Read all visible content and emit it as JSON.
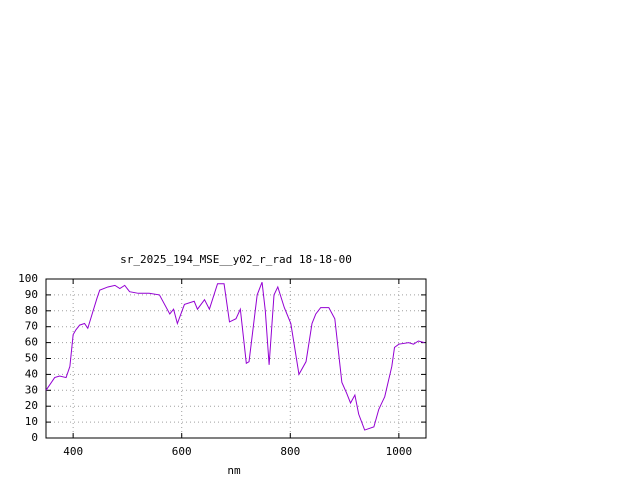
{
  "chart_data": {
    "type": "line",
    "title": "sr_2025_194_MSE__y02_r_rad 18-18-00",
    "x_label": "nm",
    "x": [
      350,
      366,
      375,
      387,
      394,
      400,
      405,
      412,
      421,
      427,
      435,
      444,
      449,
      464,
      477,
      486,
      495,
      504,
      520,
      540,
      559,
      578,
      585,
      592,
      605,
      623,
      629,
      642,
      651,
      666,
      678,
      688,
      700,
      708,
      719,
      724,
      739,
      748,
      754,
      761,
      770,
      777,
      789,
      801,
      816,
      829,
      840,
      847,
      856,
      871,
      882,
      895,
      904,
      911,
      919,
      926,
      937,
      954,
      963,
      974,
      987,
      992,
      1000,
      1018,
      1027,
      1036,
      1047
    ],
    "series": [
      {
        "name": "sr_2025_194_MSE__y02_r_rad",
        "color": "#9400d3",
        "values": [
          30,
          38,
          39,
          38,
          45,
          65,
          68,
          71,
          72,
          69,
          78,
          88,
          93,
          95,
          96,
          94,
          96,
          92,
          91,
          91,
          90,
          78,
          81,
          72,
          84,
          86,
          81,
          87,
          81,
          97,
          97,
          73,
          75,
          81,
          47,
          48,
          90,
          98,
          80,
          46,
          90,
          95,
          82,
          72,
          40,
          48,
          72,
          78,
          82,
          82,
          75,
          35,
          28,
          22,
          27,
          15,
          5,
          7,
          18,
          26,
          45,
          57,
          59,
          60,
          59,
          61,
          60
        ]
      }
    ],
    "xlim": [
      350,
      1050
    ],
    "xticks": [
      400,
      600,
      800,
      1000
    ],
    "ylim": [
      0,
      100
    ],
    "yticks": [
      0,
      10,
      20,
      30,
      40,
      50,
      60,
      70,
      80,
      90,
      100
    ],
    "grid": true
  }
}
